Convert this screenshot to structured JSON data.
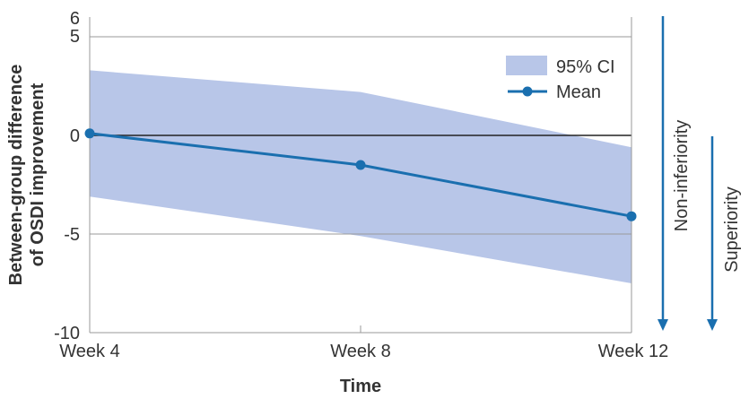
{
  "chart_data": {
    "type": "line",
    "title": "",
    "xlabel": "Time",
    "ylabel_lines": [
      "Between-group difference",
      "of OSDI improvement"
    ],
    "categories": [
      "Week 4",
      "Week 8",
      "Week 12"
    ],
    "ylim": [
      -10,
      6
    ],
    "yticks": [
      -10,
      -5,
      0,
      5,
      6
    ],
    "ytick_labels": [
      "-10",
      "-5",
      "0",
      "5",
      "6"
    ],
    "series": [
      {
        "name": "Mean",
        "values": [
          0.1,
          -1.5,
          -4.1
        ],
        "color": "#1a6faf"
      }
    ],
    "ci_band": {
      "name": "95% CI",
      "lower": [
        -3.1,
        -5.1,
        -7.5
      ],
      "upper": [
        3.3,
        2.2,
        -0.6
      ],
      "color": "#b8c6e8"
    },
    "legend": {
      "position": "top-right",
      "entries": [
        "95% CI",
        "Mean"
      ]
    },
    "annotations": [
      {
        "text": "Non-inferiority",
        "direction": "down",
        "color": "#1a6faf"
      },
      {
        "text": "Superiority",
        "direction": "down",
        "color": "#1a6faf"
      }
    ],
    "grid": true
  }
}
